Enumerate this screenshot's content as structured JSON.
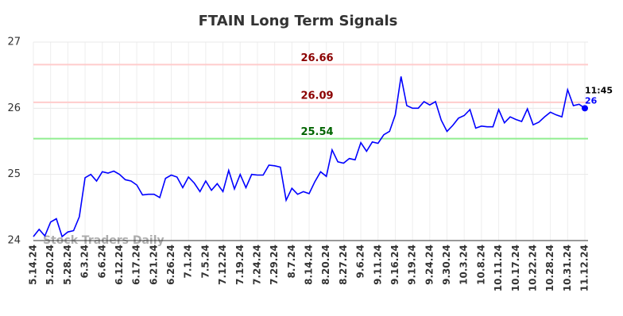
{
  "chart_data": {
    "type": "line",
    "title": "FTAIN Long Term Signals",
    "watermark": "Stock Traders Daily",
    "last_time": "11:45",
    "categories": [
      "5.14.24",
      null,
      null,
      "5.20.24",
      null,
      null,
      "5.28.24",
      null,
      null,
      "6.3.24",
      null,
      null,
      "6.6.24",
      null,
      null,
      "6.12.24",
      null,
      null,
      "6.17.24",
      null,
      null,
      "6.21.24",
      null,
      null,
      "6.26.24",
      null,
      null,
      "7.1.24",
      null,
      null,
      "7.5.24",
      null,
      null,
      "7.12.24",
      null,
      null,
      "7.19.24",
      null,
      null,
      "7.24.24",
      null,
      null,
      "7.29.24",
      null,
      null,
      "8.7.24",
      null,
      null,
      "8.14.24",
      null,
      null,
      "8.20.24",
      null,
      null,
      "8.27.24",
      null,
      null,
      "9.6.24",
      null,
      null,
      "9.11.24",
      null,
      null,
      "9.16.24",
      null,
      null,
      "9.19.24",
      null,
      null,
      "9.24.24",
      null,
      null,
      "9.30.24",
      null,
      null,
      "10.3.24",
      null,
      null,
      "10.8.24",
      null,
      null,
      "10.11.24",
      null,
      null,
      "10.17.24",
      null,
      null,
      "10.22.24",
      null,
      null,
      "10.28.24",
      null,
      null,
      "10.31.24",
      null,
      null,
      "11.12.24"
    ],
    "series": [
      {
        "name": "FTAIN",
        "color": "#0000ff",
        "values": [
          24.06,
          24.17,
          24.07,
          24.28,
          24.33,
          24.06,
          24.13,
          24.15,
          24.36,
          24.95,
          25.0,
          24.9,
          25.04,
          25.02,
          25.05,
          25.0,
          24.92,
          24.9,
          24.84,
          24.69,
          24.7,
          24.7,
          24.65,
          24.94,
          24.99,
          24.96,
          24.8,
          24.96,
          24.87,
          24.74,
          24.9,
          24.76,
          24.86,
          24.74,
          25.06,
          24.78,
          25.0,
          24.8,
          25.0,
          24.99,
          24.99,
          25.14,
          25.13,
          25.11,
          24.61,
          24.79,
          24.7,
          24.74,
          24.71,
          24.89,
          25.04,
          24.97,
          25.37,
          25.19,
          25.17,
          25.24,
          25.22,
          25.48,
          25.35,
          25.49,
          25.47,
          25.6,
          25.65,
          25.9,
          26.48,
          26.04,
          26.0,
          26.0,
          26.1,
          26.05,
          26.1,
          25.82,
          25.65,
          25.74,
          25.85,
          25.89,
          25.98,
          25.7,
          25.73,
          25.72,
          25.72,
          25.98,
          25.78,
          25.87,
          25.83,
          25.8,
          25.99,
          25.75,
          25.79,
          25.87,
          25.94,
          25.9,
          25.87,
          26.28,
          26.04,
          26.06,
          26
        ]
      }
    ],
    "reference_lines": [
      {
        "value": 26.66,
        "color": "#ffcccc",
        "label_color": "#8b0000"
      },
      {
        "value": 26.09,
        "color": "#ffcccc",
        "label_color": "#8b0000"
      },
      {
        "value": 25.54,
        "color": "#90ee90",
        "label_color": "#006400"
      }
    ],
    "ylim": [
      24,
      27
    ],
    "yticks": [
      24,
      25,
      26,
      27
    ],
    "grid": true
  }
}
